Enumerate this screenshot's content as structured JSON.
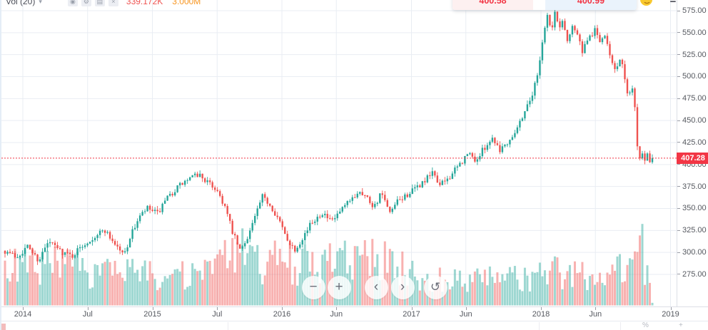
{
  "legend": {
    "title": "Vol (20)",
    "caret": "▾",
    "icons": [
      {
        "name": "eye-icon",
        "glyph": "◉"
      },
      {
        "name": "settings-gear-icon",
        "glyph": "⚙"
      },
      {
        "name": "source-icon",
        "glyph": "▤"
      },
      {
        "name": "delete-icon",
        "glyph": "×"
      }
    ],
    "volume_value": "339.172K",
    "volume_value_color": "#ef5350",
    "ma_value": "3.000M",
    "ma_value_color": "#f7941d"
  },
  "trade_panel": {
    "sell_price": "400.58",
    "buy_price": "400.99",
    "spread": "",
    "price_color": "#f23645",
    "sell_bg": "#fdf0f0",
    "buy_bg": "#eaf3fc"
  },
  "window_controls": {
    "minimize_label": "−"
  },
  "nav_buttons": [
    {
      "name": "zoom-out-button",
      "symbol": "−",
      "small": false
    },
    {
      "name": "zoom-in-button",
      "symbol": "+",
      "small": false
    },
    {
      "name": "pan-left-button",
      "symbol": "‹",
      "small": false
    },
    {
      "name": "pan-right-button",
      "symbol": "›",
      "small": false
    },
    {
      "name": "reset-view-button",
      "symbol": "↺",
      "small": true
    }
  ],
  "bottom_bar": {
    "percent_label": "%",
    "plus_label": "+"
  },
  "price_axis_label_format": "0.00",
  "chart_data": {
    "type": "candlestick",
    "timeframe": "weekly",
    "title": "",
    "x_range": [
      "2013-11",
      "2018-11"
    ],
    "y_ticks": [
      275,
      300,
      325,
      350,
      375,
      400,
      425,
      450,
      475,
      500,
      525,
      550,
      575
    ],
    "x_ticks": [
      {
        "label": "2014",
        "yf": 2014.0
      },
      {
        "label": "Jul",
        "yf": 2014.5
      },
      {
        "label": "2015",
        "yf": 2015.0
      },
      {
        "label": "Jul",
        "yf": 2015.5
      },
      {
        "label": "2016",
        "yf": 2016.0
      },
      {
        "label": "Jun",
        "yf": 2016.42
      },
      {
        "label": "2017",
        "yf": 2017.0
      },
      {
        "label": "Jun",
        "yf": 2017.42
      },
      {
        "label": "2018",
        "yf": 2018.0
      },
      {
        "label": "Jun",
        "yf": 2018.42
      },
      {
        "label": "2019",
        "yf": 2019.0
      }
    ],
    "last_price": 407.28,
    "last_price_label": "407.28",
    "last_price_line_color": "#f23645",
    "up_color": "#26a69a",
    "down_color": "#ef5350",
    "vol_up_color": "rgba(38,166,154,0.45)",
    "vol_down_color": "rgba(239,83,80,0.45)",
    "grid_color": "#e9edf3",
    "grid": true,
    "noise_seed": 7,
    "price_keypoints": [
      [
        2013.862,
        302
      ],
      [
        2013.95,
        295
      ],
      [
        2014.04,
        307
      ],
      [
        2014.12,
        291
      ],
      [
        2014.2,
        312
      ],
      [
        2014.3,
        301
      ],
      [
        2014.38,
        296
      ],
      [
        2014.46,
        308
      ],
      [
        2014.55,
        318
      ],
      [
        2014.63,
        326
      ],
      [
        2014.7,
        312
      ],
      [
        2014.78,
        297
      ],
      [
        2014.83,
        318
      ],
      [
        2014.89,
        338
      ],
      [
        2014.96,
        350
      ],
      [
        2015.04,
        344
      ],
      [
        2015.12,
        362
      ],
      [
        2015.2,
        375
      ],
      [
        2015.28,
        383
      ],
      [
        2015.36,
        389
      ],
      [
        2015.43,
        379
      ],
      [
        2015.5,
        371
      ],
      [
        2015.56,
        352
      ],
      [
        2015.62,
        322
      ],
      [
        2015.68,
        301
      ],
      [
        2015.74,
        320
      ],
      [
        2015.8,
        344
      ],
      [
        2015.85,
        363
      ],
      [
        2015.9,
        356
      ],
      [
        2015.96,
        342
      ],
      [
        2016.03,
        318
      ],
      [
        2016.1,
        303
      ],
      [
        2016.17,
        320
      ],
      [
        2016.24,
        336
      ],
      [
        2016.31,
        346
      ],
      [
        2016.38,
        334
      ],
      [
        2016.45,
        346
      ],
      [
        2016.53,
        359
      ],
      [
        2016.6,
        371
      ],
      [
        2016.66,
        362
      ],
      [
        2016.71,
        352
      ],
      [
        2016.77,
        368
      ],
      [
        2016.83,
        343
      ],
      [
        2016.89,
        357
      ],
      [
        2016.95,
        364
      ],
      [
        2017.02,
        371
      ],
      [
        2017.1,
        381
      ],
      [
        2017.17,
        391
      ],
      [
        2017.22,
        376
      ],
      [
        2017.3,
        387
      ],
      [
        2017.38,
        401
      ],
      [
        2017.44,
        413
      ],
      [
        2017.5,
        404
      ],
      [
        2017.57,
        421
      ],
      [
        2017.63,
        431
      ],
      [
        2017.68,
        417
      ],
      [
        2017.75,
        427
      ],
      [
        2017.82,
        443
      ],
      [
        2017.88,
        463
      ],
      [
        2017.93,
        479
      ],
      [
        2017.97,
        500
      ],
      [
        2018.01,
        540
      ],
      [
        2018.05,
        572
      ],
      [
        2018.08,
        549
      ],
      [
        2018.11,
        575
      ],
      [
        2018.14,
        553
      ],
      [
        2018.17,
        567
      ],
      [
        2018.2,
        538
      ],
      [
        2018.24,
        560
      ],
      [
        2018.28,
        548
      ],
      [
        2018.32,
        528
      ],
      [
        2018.37,
        543
      ],
      [
        2018.42,
        554
      ],
      [
        2018.46,
        538
      ],
      [
        2018.5,
        546
      ],
      [
        2018.54,
        521
      ],
      [
        2018.58,
        508
      ],
      [
        2018.62,
        521
      ],
      [
        2018.65,
        491
      ],
      [
        2018.68,
        478
      ],
      [
        2018.7,
        490
      ],
      [
        2018.72,
        470
      ],
      [
        2018.735,
        456
      ],
      [
        2018.75,
        400
      ],
      [
        2018.765,
        409
      ],
      [
        2018.78,
        416
      ],
      [
        2018.8,
        404
      ],
      [
        2018.82,
        413
      ],
      [
        2018.835,
        405
      ],
      [
        2018.855,
        407.28
      ]
    ],
    "volume_keypoints_millions": [
      [
        2013.862,
        5.5
      ],
      [
        2014.2,
        6.0
      ],
      [
        2014.5,
        5.0
      ],
      [
        2014.8,
        4.6
      ],
      [
        2015.0,
        4.8
      ],
      [
        2015.3,
        4.2
      ],
      [
        2015.55,
        6.5
      ],
      [
        2015.68,
        8.0
      ],
      [
        2015.9,
        5.5
      ],
      [
        2016.0,
        7.5
      ],
      [
        2016.1,
        6.0
      ],
      [
        2016.4,
        6.5
      ],
      [
        2016.8,
        6.8
      ],
      [
        2017.0,
        4.6
      ],
      [
        2017.3,
        3.8
      ],
      [
        2017.6,
        4.0
      ],
      [
        2017.9,
        3.8
      ],
      [
        2018.1,
        5.2
      ],
      [
        2018.4,
        4.2
      ],
      [
        2018.6,
        5.2
      ],
      [
        2018.7,
        6.2
      ],
      [
        2018.74,
        9.0
      ],
      [
        2018.75,
        12.8
      ],
      [
        2018.77,
        9.8
      ],
      [
        2018.8,
        5.5
      ],
      [
        2018.84,
        3.0
      ],
      [
        2018.86,
        0.34
      ]
    ]
  }
}
